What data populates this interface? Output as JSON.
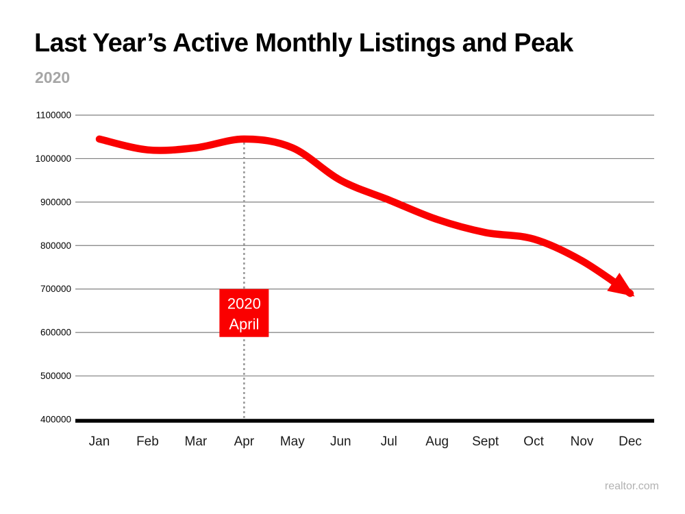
{
  "header": {
    "title": "Last Year’s Active Monthly Listings and Peak",
    "subtitle": "2020"
  },
  "watermark": "realtor.com",
  "colors": {
    "accent_red": "#FA0000",
    "grid_gray": "#7f7f7f",
    "axis_black": "#000000",
    "dotted_gray": "#9a9a9a",
    "label_black": "#1a1a1a",
    "subtitle_gray": "#a6a6a6",
    "watermark_gray": "#b2b2b2",
    "annotation_text": "#ffffff"
  },
  "chart_data": {
    "type": "line",
    "title": "Last Year’s Active Monthly Listings and Peak",
    "subtitle": "2020",
    "xlabel": "",
    "ylabel": "",
    "categories": [
      "Jan",
      "Feb",
      "Mar",
      "Apr",
      "May",
      "Jun",
      "Jul",
      "Aug",
      "Sept",
      "Oct",
      "Nov",
      "Dec"
    ],
    "series": [
      {
        "name": "Active monthly listings",
        "values": [
          1045000,
          1020000,
          1025000,
          1045000,
          1025000,
          950000,
          905000,
          860000,
          830000,
          815000,
          765000,
          690000
        ]
      }
    ],
    "ylim": [
      400000,
      1100000
    ],
    "yticks": [
      400000,
      500000,
      600000,
      700000,
      800000,
      900000,
      1000000,
      1100000
    ],
    "grid": true,
    "legend": "none",
    "line_color": "#FA0000",
    "line_end": "arrowhead",
    "peak": {
      "category": "Apr",
      "value": 1045000,
      "annotation_lines": [
        "2020",
        "April"
      ],
      "marker": "dotted-vertical-line",
      "box_color": "#FA0000"
    }
  }
}
